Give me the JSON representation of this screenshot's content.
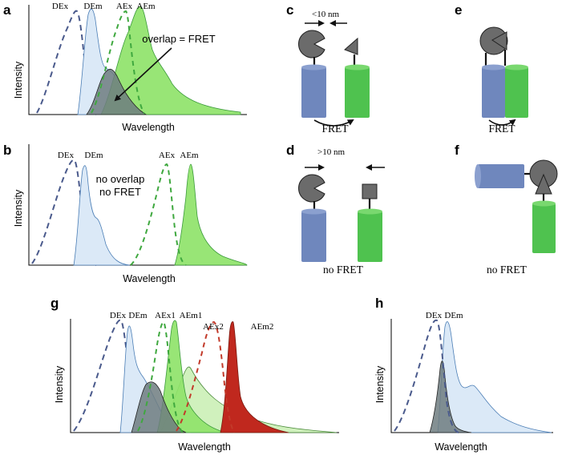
{
  "panels": {
    "a": {
      "letter": "a",
      "xlabel": "Wavelength",
      "ylabel": "Intensity",
      "curves": [
        "DEx",
        "DEm",
        "AEx",
        "AEm"
      ],
      "annotation": "overlap = FRET"
    },
    "b": {
      "letter": "b",
      "xlabel": "Wavelength",
      "ylabel": "Intensity",
      "curves": [
        "DEx",
        "DEm",
        "AEx",
        "AEm"
      ],
      "annotation_line1": "no overlap",
      "annotation_line2": "no FRET"
    },
    "c": {
      "letter": "c",
      "distance": "<10 nm",
      "caption": "FRET"
    },
    "d": {
      "letter": "d",
      "distance": ">10 nm",
      "caption": "no FRET"
    },
    "e": {
      "letter": "e",
      "caption": "FRET"
    },
    "f": {
      "letter": "f",
      "caption": "no FRET"
    },
    "g": {
      "letter": "g",
      "xlabel": "Wavelength",
      "ylabel": "Intensity",
      "curves": [
        "DEx",
        "DEm",
        "AEx1",
        "AEm1",
        "AEx2",
        "AEm2"
      ]
    },
    "h": {
      "letter": "h",
      "xlabel": "Wavelength",
      "ylabel": "Intensity",
      "curves": [
        "DEx",
        "DEm"
      ]
    }
  },
  "colors": {
    "donor_excitation": "#4a5a8c",
    "donor_emission": "#dbe9f7",
    "acceptor_excitation": "#3fa83f",
    "acceptor_emission": "#8fe36a",
    "acceptor2_excitation": "#c23a2a",
    "acceptor2_emission": "#c0281e",
    "overlap": "#6f7d80",
    "donor_protein": "#6f87bd",
    "acceptor_protein": "#4fc24f"
  }
}
